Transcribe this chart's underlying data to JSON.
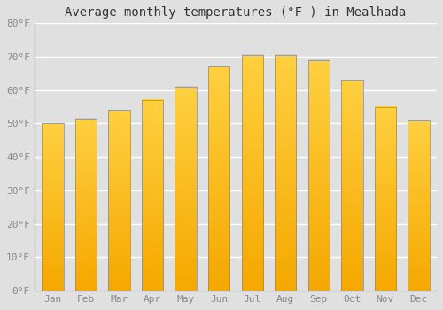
{
  "title": "Average monthly temperatures (°F ) in Mealhada",
  "months": [
    "Jan",
    "Feb",
    "Mar",
    "Apr",
    "May",
    "Jun",
    "Jul",
    "Aug",
    "Sep",
    "Oct",
    "Nov",
    "Dec"
  ],
  "values": [
    50,
    51.5,
    54,
    57,
    61,
    67,
    70.5,
    70.5,
    69,
    63,
    55,
    51
  ],
  "ylim": [
    0,
    80
  ],
  "yticks": [
    0,
    10,
    20,
    30,
    40,
    50,
    60,
    70,
    80
  ],
  "ytick_labels": [
    "0°F",
    "10°F",
    "20°F",
    "30°F",
    "40°F",
    "50°F",
    "60°F",
    "70°F",
    "80°F"
  ],
  "background_color": "#e0e0e0",
  "grid_color": "#ffffff",
  "title_fontsize": 10,
  "tick_fontsize": 8,
  "tick_color": "#888888",
  "bar_color_bottom": "#F5A800",
  "bar_color_top": "#FFD040",
  "bar_width": 0.65,
  "bar_edge_color": "#888888",
  "bar_edge_width": 0.5
}
